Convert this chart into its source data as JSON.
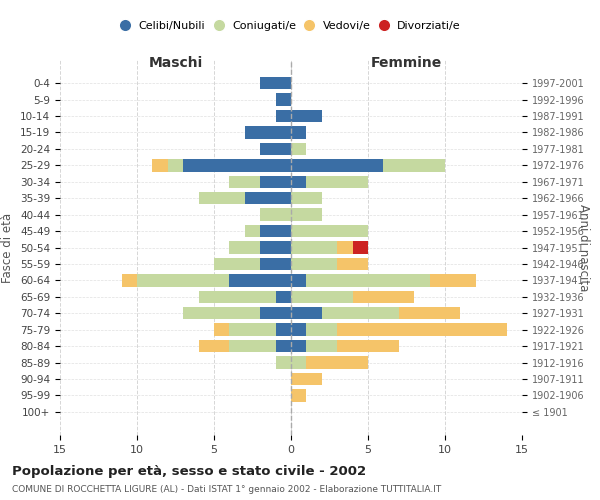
{
  "age_groups": [
    "100+",
    "95-99",
    "90-94",
    "85-89",
    "80-84",
    "75-79",
    "70-74",
    "65-69",
    "60-64",
    "55-59",
    "50-54",
    "45-49",
    "40-44",
    "35-39",
    "30-34",
    "25-29",
    "20-24",
    "15-19",
    "10-14",
    "5-9",
    "0-4"
  ],
  "birth_years": [
    "≤ 1901",
    "1902-1906",
    "1907-1911",
    "1912-1916",
    "1917-1921",
    "1922-1926",
    "1927-1931",
    "1932-1936",
    "1937-1941",
    "1942-1946",
    "1947-1951",
    "1952-1956",
    "1957-1961",
    "1962-1966",
    "1967-1971",
    "1972-1976",
    "1977-1981",
    "1982-1986",
    "1987-1991",
    "1992-1996",
    "1997-2001"
  ],
  "maschi": {
    "celibi": [
      0,
      0,
      0,
      0,
      1,
      1,
      2,
      1,
      4,
      2,
      2,
      2,
      0,
      3,
      2,
      7,
      2,
      3,
      1,
      1,
      2
    ],
    "coniugati": [
      0,
      0,
      0,
      1,
      3,
      3,
      5,
      5,
      6,
      3,
      2,
      1,
      2,
      3,
      2,
      1,
      0,
      0,
      0,
      0,
      0
    ],
    "vedovi": [
      0,
      0,
      0,
      0,
      2,
      1,
      0,
      0,
      1,
      0,
      0,
      0,
      0,
      0,
      0,
      1,
      0,
      0,
      0,
      0,
      0
    ],
    "divorziati": [
      0,
      0,
      0,
      0,
      0,
      0,
      0,
      0,
      0,
      0,
      0,
      0,
      0,
      0,
      0,
      0,
      0,
      0,
      0,
      0,
      0
    ]
  },
  "femmine": {
    "nubili": [
      0,
      0,
      0,
      0,
      1,
      1,
      2,
      0,
      1,
      0,
      0,
      0,
      0,
      0,
      1,
      6,
      0,
      1,
      2,
      0,
      0
    ],
    "coniugate": [
      0,
      0,
      0,
      1,
      2,
      2,
      5,
      4,
      8,
      3,
      3,
      5,
      2,
      2,
      4,
      4,
      1,
      0,
      0,
      0,
      0
    ],
    "vedove": [
      0,
      1,
      2,
      4,
      4,
      11,
      4,
      4,
      3,
      2,
      1,
      0,
      0,
      0,
      0,
      0,
      0,
      0,
      0,
      0,
      0
    ],
    "divorziate": [
      0,
      0,
      0,
      0,
      0,
      0,
      0,
      0,
      0,
      0,
      1,
      0,
      0,
      0,
      0,
      0,
      0,
      0,
      0,
      0,
      0
    ]
  },
  "colors": {
    "celibi_nubili": "#3A6EA5",
    "coniugati": "#C5D9A0",
    "vedovi": "#F5C469",
    "divorziati": "#CC2222"
  },
  "xlim": 15,
  "title": "Popolazione per età, sesso e stato civile - 2002",
  "subtitle": "COMUNE DI ROCCHETTA LIGURE (AL) - Dati ISTAT 1° gennaio 2002 - Elaborazione TUTTITALIA.IT",
  "xlabel_left": "Maschi",
  "xlabel_right": "Femmine",
  "ylabel_left": "Fasce di età",
  "ylabel_right": "Anni di nascita",
  "legend_labels": [
    "Celibi/Nubili",
    "Coniugati/e",
    "Vedovi/e",
    "Divorziati/e"
  ],
  "background_color": "#ffffff",
  "grid_color": "#cccccc"
}
